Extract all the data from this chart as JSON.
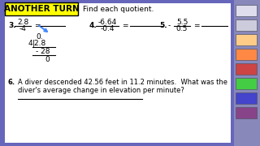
{
  "bg_color": "#6666bb",
  "white_box_color": "#ffffff",
  "header_label_bg": "#ffff00",
  "header_label_text": "ANOTHER TURN",
  "header_text": "Find each quotient.",
  "q3_frac_num": "2.8",
  "q3_frac_den": "-4",
  "q4_frac_num": "-6.64",
  "q4_frac_den": "-0.4",
  "q5_frac_num": "5.5",
  "q5_frac_den": "0.5",
  "q5_neg": "-",
  "q3_work_quot": "0.",
  "q3_work_divisor": "4",
  "q3_work_dividend": "2.8",
  "q3_work_sub": "- 28",
  "q3_work_rem": "0",
  "q6_num1": "6.",
  "q6_text1": "A diver descended 42.56 feet in 11.2 minutes.  What was the",
  "q6_text2": "diver's average change in elevation per minute?",
  "toolbar_bg": "#8888bb",
  "fs": 6.5,
  "fs_header": 7.5,
  "fs_q6": 6.0
}
